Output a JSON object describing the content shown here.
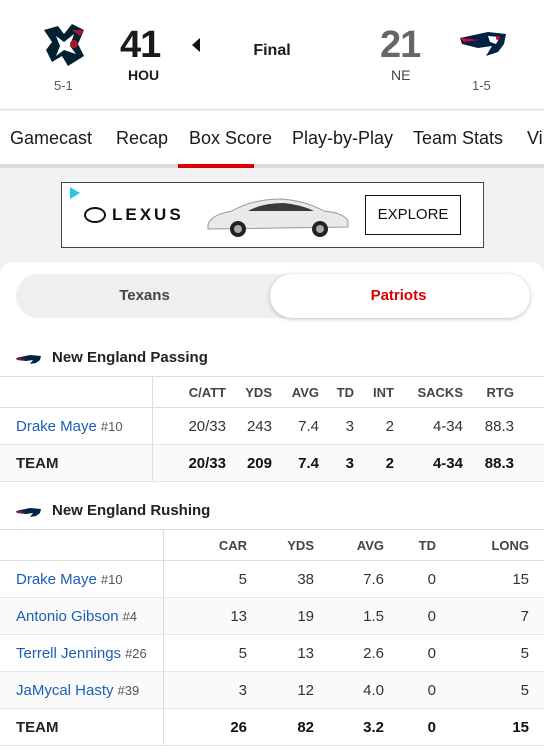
{
  "game": {
    "status": "Final",
    "home": {
      "abbr": "HOU",
      "score": "41",
      "record": "5-1"
    },
    "away": {
      "abbr": "NE",
      "score": "21",
      "record": "1-5"
    }
  },
  "tabs": [
    "Gamecast",
    "Recap",
    "Box Score",
    "Play-by-Play",
    "Team Stats",
    "Vi"
  ],
  "active_tab": "Box Score",
  "ad": {
    "brand": "LEXUS",
    "cta": "EXPLORE"
  },
  "team_toggle": {
    "left": "Texans",
    "right": "Patriots",
    "active": "Patriots"
  },
  "passing": {
    "title": "New England Passing",
    "headers": [
      "C/ATT",
      "YDS",
      "AVG",
      "TD",
      "INT",
      "SACKS",
      "RTG"
    ],
    "rows": [
      {
        "name": "Drake Maye",
        "num": "#10",
        "stats": [
          "20/33",
          "243",
          "7.4",
          "3",
          "2",
          "4-34",
          "88.3"
        ]
      }
    ],
    "team": {
      "label": "TEAM",
      "stats": [
        "20/33",
        "209",
        "7.4",
        "3",
        "2",
        "4-34",
        "88.3"
      ]
    }
  },
  "rushing": {
    "title": "New England Rushing",
    "headers": [
      "CAR",
      "YDS",
      "AVG",
      "TD",
      "LONG"
    ],
    "rows": [
      {
        "name": "Drake Maye",
        "num": "#10",
        "stats": [
          "5",
          "38",
          "7.6",
          "0",
          "15"
        ]
      },
      {
        "name": "Antonio Gibson",
        "num": "#4",
        "stats": [
          "13",
          "19",
          "1.5",
          "0",
          "7"
        ]
      },
      {
        "name": "Terrell Jennings",
        "num": "#26",
        "stats": [
          "5",
          "13",
          "2.6",
          "0",
          "5"
        ]
      },
      {
        "name": "JaMycal Hasty",
        "num": "#39",
        "stats": [
          "3",
          "12",
          "4.0",
          "0",
          "5"
        ]
      }
    ],
    "team": {
      "label": "TEAM",
      "stats": [
        "26",
        "82",
        "3.2",
        "0",
        "15"
      ]
    }
  },
  "colors": {
    "accent_red": "#dd0000",
    "link_blue": "#1b5fb8",
    "texans_navy": "#03202f",
    "texans_red": "#a71930",
    "patriots_navy": "#002244"
  }
}
